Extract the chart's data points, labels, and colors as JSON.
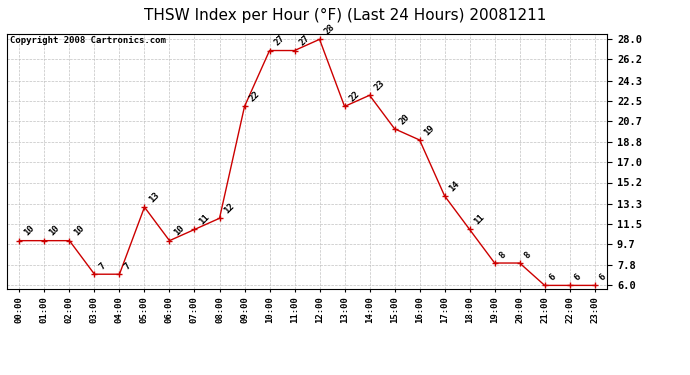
{
  "title": "THSW Index per Hour (°F) (Last 24 Hours) 20081211",
  "copyright": "Copyright 2008 Cartronics.com",
  "hours": [
    "00:00",
    "01:00",
    "02:00",
    "03:00",
    "04:00",
    "05:00",
    "06:00",
    "07:00",
    "08:00",
    "09:00",
    "10:00",
    "11:00",
    "12:00",
    "13:00",
    "14:00",
    "15:00",
    "16:00",
    "17:00",
    "18:00",
    "19:00",
    "20:00",
    "21:00",
    "22:00",
    "23:00"
  ],
  "values": [
    10,
    10,
    10,
    7,
    7,
    13,
    10,
    11,
    12,
    22,
    27,
    27,
    28,
    22,
    23,
    20,
    19,
    14,
    11,
    8,
    8,
    6,
    6,
    6
  ],
  "line_color": "#cc0000",
  "marker_color": "#cc0000",
  "bg_color": "#ffffff",
  "grid_color": "#bbbbbb",
  "ylim_min": 6.0,
  "ylim_max": 28.0,
  "yticks": [
    6.0,
    7.8,
    9.7,
    11.5,
    13.3,
    15.2,
    17.0,
    18.8,
    20.7,
    22.5,
    24.3,
    26.2,
    28.0
  ],
  "title_fontsize": 11,
  "copyright_fontsize": 6.5,
  "label_fontsize": 6.5
}
